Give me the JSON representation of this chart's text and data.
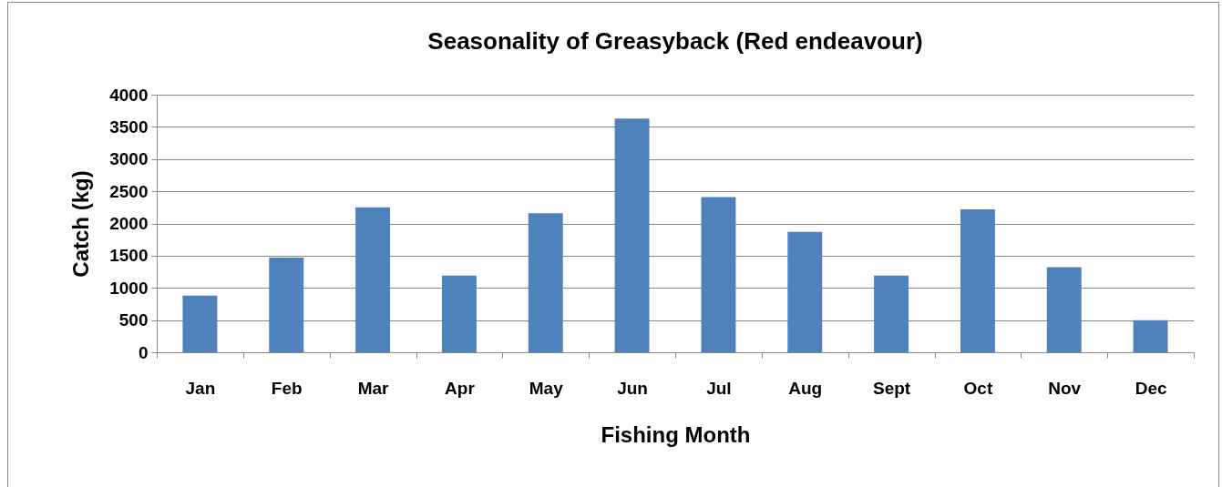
{
  "chart_data": {
    "type": "bar",
    "title": "Seasonality of Greasyback (Red endeavour)",
    "xlabel": "Fishing Month",
    "ylabel": "Catch (kg)",
    "categories": [
      "Jan",
      "Feb",
      "Mar",
      "Apr",
      "May",
      "Jun",
      "Jul",
      "Aug",
      "Sept",
      "Oct",
      "Nov",
      "Dec"
    ],
    "values": [
      880,
      1470,
      2250,
      1190,
      2160,
      3630,
      2410,
      1870,
      1190,
      2220,
      1320,
      500
    ],
    "color": "#4f81bd",
    "ylim": [
      0,
      4000
    ],
    "yticks": [
      0,
      500,
      1000,
      1500,
      2000,
      2500,
      3000,
      3500,
      4000
    ],
    "grid": "y"
  }
}
